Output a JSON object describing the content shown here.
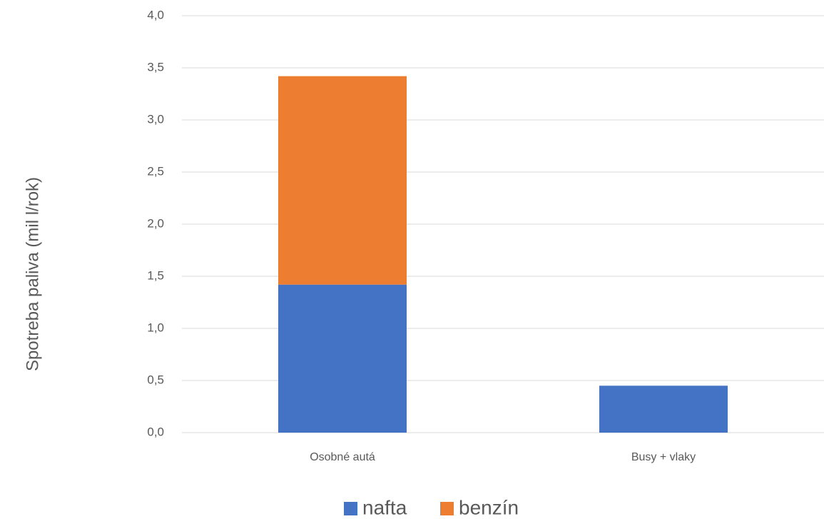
{
  "chart_data": {
    "type": "bar",
    "stacked": true,
    "categories": [
      "Osobné autá",
      "Busy + vlaky"
    ],
    "series": [
      {
        "name": "nafta",
        "values": [
          1.42,
          0.45
        ],
        "color": "#4472C4"
      },
      {
        "name": "benzín",
        "values": [
          2.0,
          0
        ],
        "color": "#ED7D31"
      }
    ],
    "title": "",
    "xlabel": "",
    "ylabel": "Spotreba paliva (mil l/rok)",
    "ylim": [
      0,
      4
    ],
    "yticks": [
      "0,0",
      "0,5",
      "1,0",
      "1,5",
      "2,0",
      "2,5",
      "3,0",
      "3,5",
      "4,0"
    ],
    "grid": true,
    "legend_position": "bottom"
  }
}
